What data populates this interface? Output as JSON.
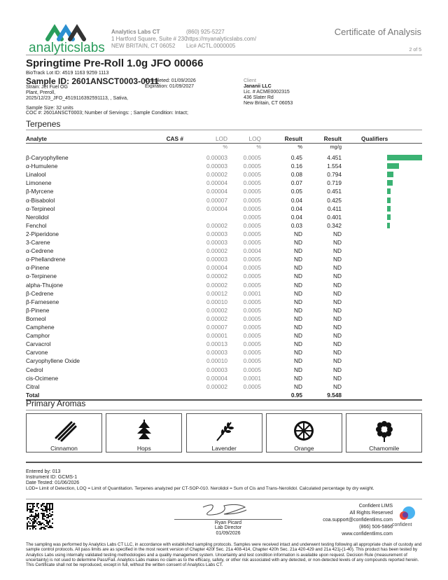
{
  "header": {
    "logo_text": "analyticslabs",
    "lab_name": "Analytics Labs CT",
    "address1": "1 Hartford Square, Suite # 230",
    "address2": "NEW BRITAIN, CT 06052",
    "phone": "(860) 925-5227",
    "website": "https://myanalyticslabs.com/",
    "license": "Lic# ACTL.0000005",
    "doc_title": "Certificate of Analysis",
    "page": "2 of 5"
  },
  "sample": {
    "product": "Springtime Pre-Roll 1.0g JFO 00066",
    "biotrack": "BioTrack Lot ID: 4519 1163 9259 1113",
    "sample_id": "Sample ID: 2601ANSCT0003-0011",
    "strain": "Strain: Jet Fuel OG",
    "type": "Plant, Preroll,",
    "batch": "2025/12/23_JFO_4519116392591113, , Sativa,",
    "completed": "Completed: 01/09/2026",
    "expiration": "Expiration: 01/09/2027",
    "size": "Sample Size: 32 units",
    "coc": "COC #: 2601ANSCT0003; Number of Servings: ; Sample Condition: Intact;"
  },
  "client": {
    "label": "Client",
    "name": "Jananii LLC",
    "license": "Lic. # ACME0002315",
    "street": "436 Slater Rd",
    "city": "New Britain, CT 06053"
  },
  "terpenes": {
    "title": "Terpenes",
    "headers": {
      "analyte": "Analyte",
      "cas": "CAS #",
      "lod": "LOD",
      "loq": "LOQ",
      "result_pct": "Result",
      "result_mg": "Result",
      "qualifiers": "Qualifiers"
    },
    "units": {
      "lod": "%",
      "loq": "%",
      "result_pct": "%",
      "result_mg": "mg/g"
    },
    "bar_color": "#3bb273",
    "rows": [
      [
        "β-Caryophyllene",
        "0.00003",
        "0.0005",
        "0.45",
        "4.451"
      ],
      [
        "α-Humulene",
        "0.00003",
        "0.0005",
        "0.16",
        "1.554"
      ],
      [
        "Linalool",
        "0.00002",
        "0.0005",
        "0.08",
        "0.794"
      ],
      [
        "Limonene",
        "0.00004",
        "0.0005",
        "0.07",
        "0.719"
      ],
      [
        "β-Myrcene",
        "0.00004",
        "0.0005",
        "0.05",
        "0.451"
      ],
      [
        "α-Bisabolol",
        "0.00007",
        "0.0005",
        "0.04",
        "0.425"
      ],
      [
        "α-Terpineol",
        "0.00004",
        "0.0005",
        "0.04",
        "0.411"
      ],
      [
        "Nerolidol",
        "",
        "0.0005",
        "0.04",
        "0.401"
      ],
      [
        "Fenchol",
        "0.00002",
        "0.0005",
        "0.03",
        "0.342"
      ],
      [
        "2-Piperidone",
        "0.00003",
        "0.0005",
        "ND",
        "ND"
      ],
      [
        "3-Carene",
        "0.00003",
        "0.0005",
        "ND",
        "ND"
      ],
      [
        "α-Cedrene",
        "0.00002",
        "0.0004",
        "ND",
        "ND"
      ],
      [
        "α-Phellandrene",
        "0.00003",
        "0.0005",
        "ND",
        "ND"
      ],
      [
        "α-Pinene",
        "0.00004",
        "0.0005",
        "ND",
        "ND"
      ],
      [
        "α-Terpinene",
        "0.00002",
        "0.0005",
        "ND",
        "ND"
      ],
      [
        "alpha-Thujone",
        "0.00002",
        "0.0005",
        "ND",
        "ND"
      ],
      [
        "β-Cedrene",
        "0.00012",
        "0.0001",
        "ND",
        "ND"
      ],
      [
        "β-Farnesene",
        "0.00010",
        "0.0005",
        "ND",
        "ND"
      ],
      [
        "β-Pinene",
        "0.00002",
        "0.0005",
        "ND",
        "ND"
      ],
      [
        "Borneol",
        "0.00002",
        "0.0005",
        "ND",
        "ND"
      ],
      [
        "Camphene",
        "0.00007",
        "0.0005",
        "ND",
        "ND"
      ],
      [
        "Camphor",
        "0.00001",
        "0.0005",
        "ND",
        "ND"
      ],
      [
        "Carvacrol",
        "0.00013",
        "0.0005",
        "ND",
        "ND"
      ],
      [
        "Carvone",
        "0.00003",
        "0.0005",
        "ND",
        "ND"
      ],
      [
        "Caryophyllene Oxide",
        "0.00010",
        "0.0005",
        "ND",
        "ND"
      ],
      [
        "Cedrol",
        "0.00003",
        "0.0005",
        "ND",
        "ND"
      ],
      [
        "cis-Ocimene",
        "0.00004",
        "0.0001",
        "ND",
        "ND"
      ],
      [
        "Citral",
        "0.00002",
        "0.0005",
        "ND",
        "ND"
      ]
    ],
    "total": {
      "label": "Total",
      "pct": "0.95",
      "mg": "9.548"
    }
  },
  "aromas": {
    "title": "Primary Aromas",
    "items": [
      {
        "label": "Cinnamon",
        "icon": "cinnamon-icon"
      },
      {
        "label": "Hops",
        "icon": "hops-icon"
      },
      {
        "label": "Lavender",
        "icon": "lavender-icon"
      },
      {
        "label": "Orange",
        "icon": "orange-icon"
      },
      {
        "label": "Chamomile",
        "icon": "chamomile-icon"
      }
    ]
  },
  "notes": {
    "entered": "Entered by: 013",
    "instrument": "Instrument ID: GCMS-1",
    "tested": "Date Tested: 01/06/2026",
    "legend": "LOD= Limit of Detection, LOQ = Limit of Quantitation. Terpenes analyzed per CT-SOP-010. Nerolidol = Sum of Cis and Trans-Nerolidol. Calculated percentage by dry weight."
  },
  "signature": {
    "name": "Ryan Picard",
    "title": "Lab Director",
    "date": "01/09/2026"
  },
  "lims": {
    "name": "Confident LIMS",
    "rights": "All Rights Reserved",
    "email": "coa.support@confidentlims.com",
    "phone": "(866) 506-5866",
    "web": "www.confidentlims.com",
    "logo_text": "confident"
  },
  "disclaimer": "The sampling was performed by Analytics Labs CT LLC, in accordance with established sampling protocols. Samples were received intact and underwent testing following all appropriate chain of custody and sample control protocols. All pass limits are as specified in the most recent version of Chapter 420f Sec. 21a 408-414, Chapter 420h Sec. 21a 420-429 and 21a 421j-(1-40). This product has been tested by Analytics Labs using internally validated testing methodologies and a quality management system. Uncertainty and test condition information is available upon request. Decision Rule (measurement of uncertainty) is not used to determine Pass/Fail. Analytics Labs makes no claim as to the efficacy, safety, or other risk associated with any detected, or non-detected levels of any compounds reported herein. This Certificate shall not be reproduced, except in full, without the written consent of Analytics Labs CT."
}
